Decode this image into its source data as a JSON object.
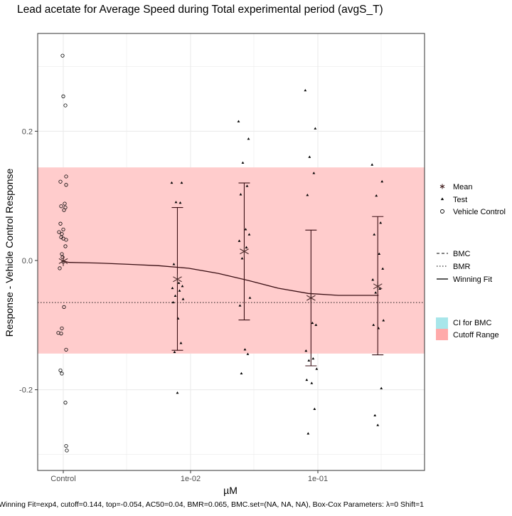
{
  "chart_data": {
    "type": "scatter",
    "title": "Lead acetate for Average Speed during Total experimental period (avgS_T)",
    "xlabel": "µM",
    "ylabel": "Response - Vehicle Control Response",
    "caption": "Winning Fit=exp4, cutoff=0.144, top=-0.054, AC50=0.04, BMR=0.065, BMC.set=(NA, NA, NA), Box-Cox Parameters: λ=0 Shift=1",
    "x_ticks": [
      "Control",
      "1e-02",
      "1e-01"
    ],
    "y_ticks": [
      "-0.2",
      "0.0",
      "0.2"
    ],
    "ylim": [
      -0.325,
      0.35
    ],
    "x_scale": "log10 (dose); Control plotted left of axis",
    "grid": true,
    "legend_position": "right",
    "cutoff_range": [
      -0.144,
      0.144
    ],
    "bmr_line": -0.065,
    "legend": {
      "points": [
        "Mean",
        "Test",
        "Vehicle Control"
      ],
      "lines": [
        "BMC",
        "BMR",
        "Winning Fit"
      ],
      "fills": [
        "CI for BMC",
        "Cutoff Range"
      ]
    },
    "colors": {
      "cutoff_fill": "#ffcccc",
      "ci_fill": "#a8e6ea",
      "cutoff_legend": "#ffaaaa",
      "fit_line": "#3a0f14",
      "points": "#000000",
      "mean": "#4a2a2a",
      "panel_border": "#333333",
      "grid": "#ebebeb"
    },
    "control": {
      "x": "Control",
      "values": [
        0.317,
        0.254,
        0.24,
        0.13,
        0.122,
        0.117,
        0.088,
        0.084,
        0.082,
        0.078,
        0.057,
        0.048,
        0.044,
        0.041,
        0.036,
        0.034,
        0.032,
        0.022,
        0.01,
        0.005,
        -0.002,
        -0.012,
        -0.072,
        -0.105,
        -0.112,
        -0.113,
        -0.138,
        -0.17,
        -0.175,
        -0.22,
        -0.287,
        -0.294
      ]
    },
    "test": [
      {
        "dose": 0.00788,
        "values": [
          0.12,
          0.12,
          0.09,
          0.089,
          -0.006,
          -0.035,
          -0.04,
          -0.043,
          -0.047,
          -0.055,
          -0.06,
          -0.065,
          -0.09,
          -0.128,
          -0.142,
          -0.205
        ]
      },
      {
        "dose": 0.0264,
        "values": [
          0.215,
          0.188,
          0.151,
          0.115,
          0.102,
          0.048,
          0.04,
          0.03,
          0.02,
          0.003,
          -0.058,
          -0.07,
          -0.138,
          -0.145,
          -0.175
        ]
      },
      {
        "dose": 0.0883,
        "values": [
          0.263,
          0.204,
          0.16,
          0.135,
          0.101,
          -0.097,
          -0.1,
          -0.14,
          -0.152,
          -0.155,
          -0.168,
          -0.185,
          -0.19,
          -0.23,
          -0.268
        ]
      },
      {
        "dose": 0.2955,
        "values": [
          0.148,
          0.122,
          0.1,
          0.058,
          0.04,
          0.01,
          -0.013,
          -0.03,
          -0.044,
          -0.05,
          -0.093,
          -0.1,
          -0.105,
          -0.198,
          -0.24,
          -0.255
        ]
      }
    ],
    "means": [
      {
        "x": "Control",
        "y": -0.001
      },
      {
        "dose": 0.00788,
        "y": -0.029,
        "ci": [
          -0.139,
          0.082
        ]
      },
      {
        "dose": 0.0264,
        "y": 0.014,
        "ci": [
          -0.092,
          0.12
        ]
      },
      {
        "dose": 0.0883,
        "y": -0.058,
        "ci": [
          -0.163,
          0.047
        ]
      },
      {
        "dose": 0.2955,
        "y": -0.04,
        "ci": [
          -0.146,
          0.068
        ]
      }
    ],
    "fit": {
      "model": "exp4",
      "points": [
        [
          0.000645,
          -0.001
        ],
        [
          0.00111,
          -0.003
        ],
        [
          0.0019,
          -0.004
        ],
        [
          0.00327,
          -0.006
        ],
        [
          0.00561,
          -0.008
        ],
        [
          0.00965,
          -0.012
        ],
        [
          0.0166,
          -0.02
        ],
        [
          0.0285,
          -0.031
        ],
        [
          0.049,
          -0.043
        ],
        [
          0.0842,
          -0.051
        ],
        [
          0.145,
          -0.054
        ],
        [
          0.3,
          -0.054
        ]
      ]
    }
  }
}
